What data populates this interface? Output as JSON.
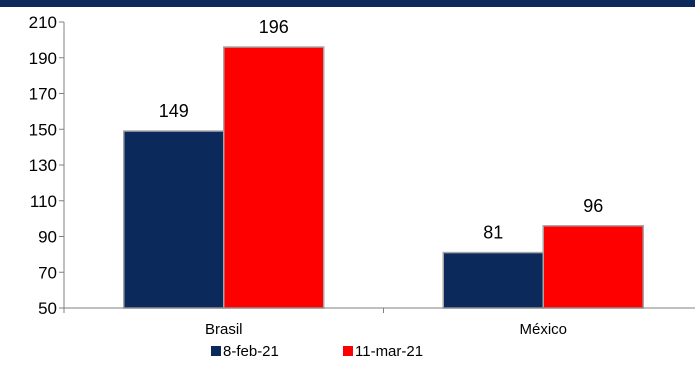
{
  "colors": {
    "top_bar": "#0b2a5b",
    "series_1": "#0b2a5b",
    "series_2": "#ff0000",
    "axis": "#808080",
    "bar_outline": "#a6a6a6",
    "text": "#000000"
  },
  "chart_data": {
    "type": "bar",
    "categories": [
      "Brasil",
      "México"
    ],
    "series": [
      {
        "name": "8-feb-21",
        "values": [
          149,
          81
        ]
      },
      {
        "name": "11-mar-21",
        "values": [
          196,
          96
        ]
      }
    ],
    "ylim": [
      50,
      210
    ],
    "yticks": [
      50,
      70,
      90,
      110,
      130,
      150,
      170,
      190,
      210
    ],
    "grid": false,
    "legend_position": "bottom",
    "data_labels": true,
    "title": "",
    "xlabel": "",
    "ylabel": ""
  }
}
